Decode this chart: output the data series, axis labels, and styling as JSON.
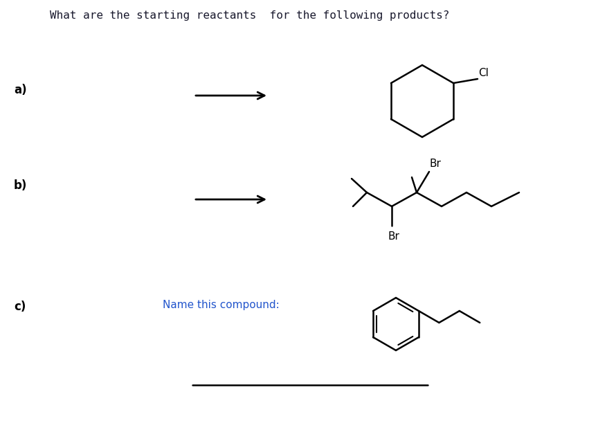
{
  "title": "What are the starting reactants  for the following products?",
  "title_color": "#1a1a2e",
  "title_fontsize": 11.5,
  "label_a": "a)",
  "label_b": "b)",
  "label_c": "c)",
  "label_fontsize": 12,
  "name_compound_text": "Name this compound:",
  "name_compound_color": "#2255cc",
  "name_compound_fontsize": 11,
  "bg_color": "#ffffff"
}
